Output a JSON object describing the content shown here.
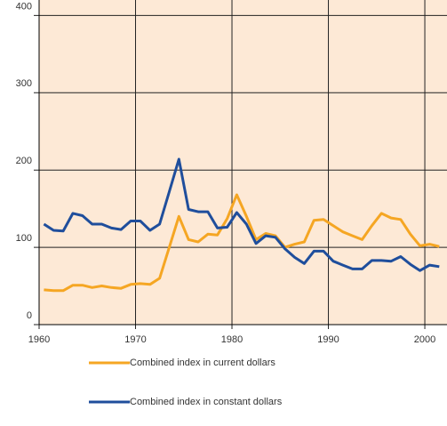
{
  "chart_data": {
    "type": "line",
    "x": [
      1960.5,
      1961.5,
      1962.5,
      1963.5,
      1964.5,
      1965.5,
      1966.5,
      1967.5,
      1968.5,
      1969.5,
      1970.5,
      1971.5,
      1972.5,
      1973.5,
      1974.5,
      1975.5,
      1976.5,
      1977.5,
      1978.5,
      1979.5,
      1980.5,
      1981.5,
      1982.5,
      1983.5,
      1984.5,
      1985.5,
      1986.5,
      1987.5,
      1988.5,
      1989.5,
      1990.5,
      1991.5,
      1992.5,
      1993.5,
      1994.5,
      1995.5,
      1996.5,
      1997.5,
      1998.5,
      1999.5,
      2000.5,
      2001.5
    ],
    "series": [
      {
        "name": "Combined index in current dollars",
        "color": "#f5a623",
        "values": [
          45,
          44,
          44,
          51,
          51,
          48,
          50,
          48,
          47,
          52,
          53,
          52,
          60,
          100,
          140,
          110,
          107,
          117,
          116,
          137,
          168,
          140,
          110,
          118,
          115,
          100,
          104,
          107,
          135,
          136,
          128,
          120,
          115,
          110,
          128,
          144,
          138,
          136,
          117,
          102,
          104,
          101
        ]
      },
      {
        "name": "Combined index in constant dollars",
        "color": "#1f4e9c",
        "values": [
          130,
          122,
          121,
          144,
          141,
          130,
          130,
          125,
          123,
          134,
          134,
          122,
          130,
          172,
          214,
          149,
          146,
          146,
          125,
          126,
          145,
          130,
          105,
          115,
          113,
          98,
          87,
          79,
          95,
          95,
          82,
          77,
          72,
          72,
          83,
          83,
          82,
          88,
          78,
          70,
          77,
          75
        ]
      }
    ],
    "xlim": [
      1960,
      2002.3
    ],
    "xticks": [
      1960,
      1970,
      1980,
      1990,
      2000
    ],
    "ylim": [
      0,
      420
    ],
    "yticks": [
      0,
      100,
      200,
      300,
      400
    ],
    "grid": true
  }
}
